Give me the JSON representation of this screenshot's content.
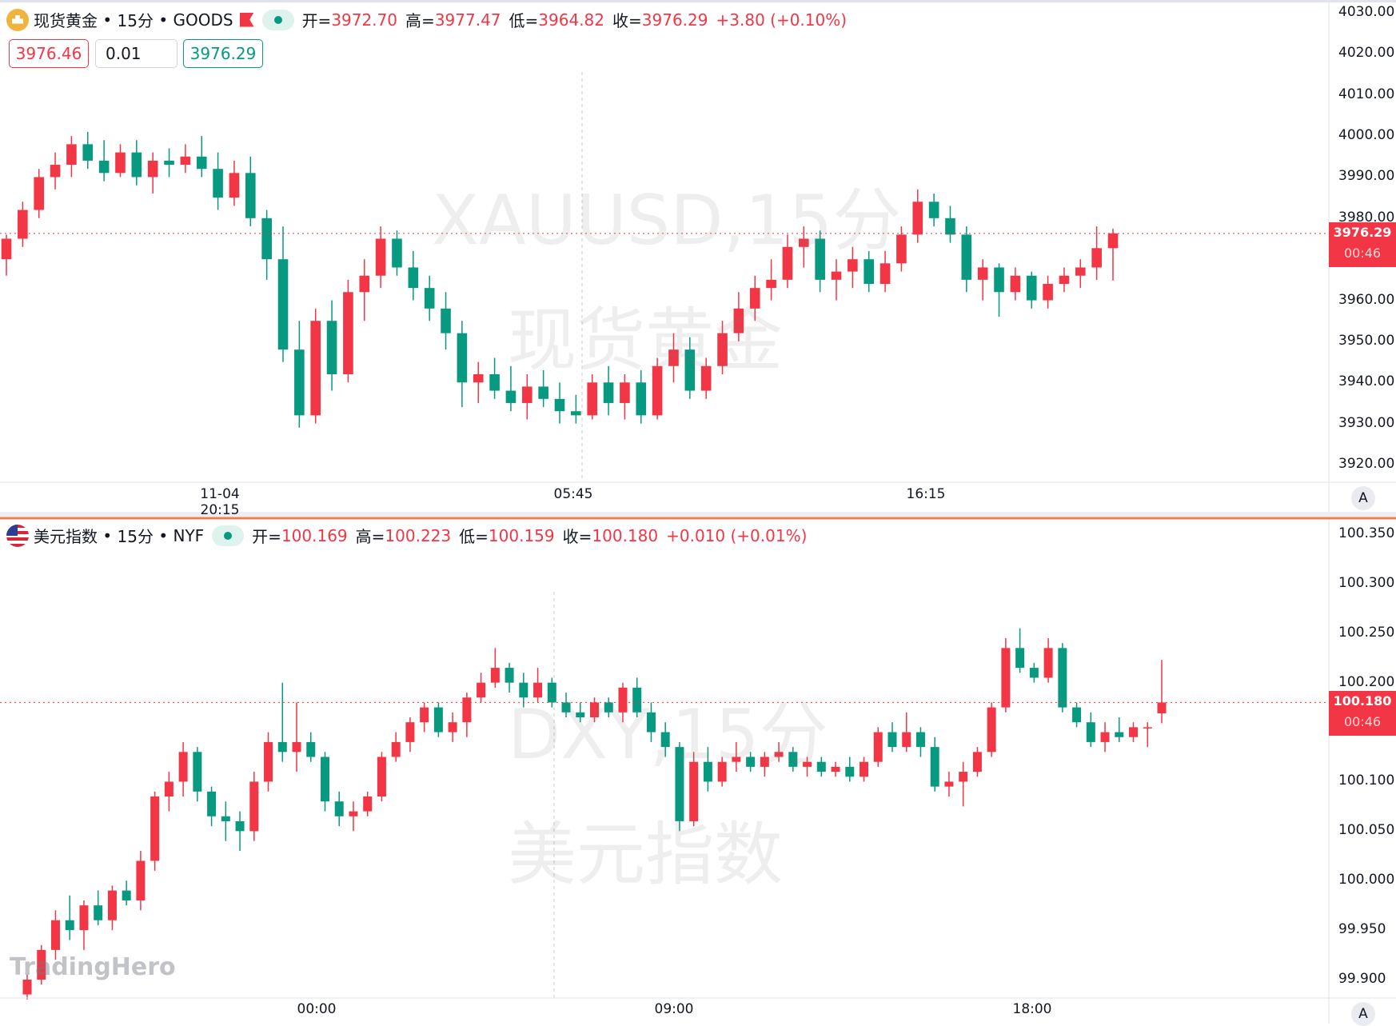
{
  "colors": {
    "up": "#f23645",
    "down": "#089981",
    "separator": "#f07d4f"
  },
  "panes": [
    {
      "legend": {
        "name": "现货黄金",
        "interval": "15分",
        "exchange": "GOODS",
        "open_label": "开=",
        "open": "3972.70",
        "high_label": "高=",
        "high": "3977.47",
        "low_label": "低=",
        "low": "3964.82",
        "close_label": "收=",
        "close": "3976.29",
        "change": "+3.80 (+0.10%)"
      },
      "trade": {
        "sell": "3976.46",
        "qty": "0.01",
        "buy": "3976.29"
      },
      "watermark": [
        "XAUUSD,15分",
        "现货黄金"
      ],
      "current": {
        "price": "3976.29",
        "countdown": "00:46"
      },
      "auto_button": "A"
    },
    {
      "legend": {
        "name": "美元指数",
        "interval": "15分",
        "exchange": "NYF",
        "open_label": "开=",
        "open": "100.169",
        "high_label": "高=",
        "high": "100.223",
        "low_label": "低=",
        "low": "100.159",
        "close_label": "收=",
        "close": "100.180",
        "change": "+0.010 (+0.01%)"
      },
      "watermark": [
        "DXY,15分",
        "美元指数"
      ],
      "current": {
        "price": "100.180",
        "countdown": "00:46"
      },
      "auto_button": "A"
    }
  ],
  "logo": "TradingHero",
  "chart_data": [
    {
      "type": "candlestick",
      "symbol": "XAUUSD",
      "interval": "15分",
      "ylim": [
        3920,
        4030
      ],
      "yticks": [
        "4030.00",
        "4020.00",
        "4010.00",
        "4000.00",
        "3990.00",
        "3980.00",
        "3960.00",
        "3950.00",
        "3940.00",
        "3930.00",
        "3920.00"
      ],
      "ytick_values": [
        4030,
        4020,
        4010,
        4000,
        3990,
        3980,
        3960,
        3950,
        3940,
        3930,
        3920
      ],
      "xticks": [
        "11-04 20:15",
        "05:45",
        "16:15"
      ],
      "ohlc": [
        [
          3970,
          3976,
          3966,
          3975
        ],
        [
          3975,
          3984,
          3973,
          3982
        ],
        [
          3982,
          3992,
          3980,
          3990
        ],
        [
          3990,
          3996,
          3987,
          3993
        ],
        [
          3993,
          4000,
          3990,
          3998
        ],
        [
          3998,
          4001,
          3992,
          3994
        ],
        [
          3994,
          3999,
          3989,
          3991
        ],
        [
          3991,
          3998,
          3990,
          3996
        ],
        [
          3996,
          3999,
          3988,
          3990
        ],
        [
          3990,
          3996,
          3986,
          3994
        ],
        [
          3994,
          3997,
          3990,
          3993
        ],
        [
          3993,
          3998,
          3991,
          3995
        ],
        [
          3995,
          4000,
          3990,
          3992
        ],
        [
          3992,
          3996,
          3982,
          3985
        ],
        [
          3985,
          3994,
          3983,
          3991
        ],
        [
          3991,
          3995,
          3978,
          3980
        ],
        [
          3980,
          3982,
          3965,
          3970
        ],
        [
          3970,
          3978,
          3945,
          3948
        ],
        [
          3948,
          3955,
          3929,
          3932
        ],
        [
          3932,
          3958,
          3930,
          3955
        ],
        [
          3955,
          3960,
          3938,
          3942
        ],
        [
          3942,
          3965,
          3940,
          3962
        ],
        [
          3962,
          3970,
          3955,
          3966
        ],
        [
          3966,
          3978,
          3963,
          3975
        ],
        [
          3975,
          3977,
          3966,
          3968
        ],
        [
          3968,
          3972,
          3960,
          3963
        ],
        [
          3963,
          3966,
          3955,
          3958
        ],
        [
          3958,
          3962,
          3948,
          3952
        ],
        [
          3952,
          3955,
          3934,
          3940
        ],
        [
          3940,
          3945,
          3935,
          3942
        ],
        [
          3942,
          3946,
          3936,
          3938
        ],
        [
          3938,
          3944,
          3933,
          3935
        ],
        [
          3935,
          3942,
          3931,
          3939
        ],
        [
          3939,
          3943,
          3934,
          3936
        ],
        [
          3936,
          3940,
          3930,
          3933
        ],
        [
          3933,
          3937,
          3930,
          3932
        ],
        [
          3932,
          3942,
          3931,
          3940
        ],
        [
          3940,
          3944,
          3932,
          3935
        ],
        [
          3935,
          3942,
          3931,
          3940
        ],
        [
          3940,
          3943,
          3930,
          3932
        ],
        [
          3932,
          3946,
          3931,
          3944
        ],
        [
          3944,
          3952,
          3940,
          3948
        ],
        [
          3948,
          3951,
          3936,
          3938
        ],
        [
          3938,
          3946,
          3936,
          3944
        ],
        [
          3944,
          3955,
          3942,
          3952
        ],
        [
          3952,
          3962,
          3950,
          3958
        ],
        [
          3958,
          3966,
          3955,
          3963
        ],
        [
          3963,
          3970,
          3960,
          3965
        ],
        [
          3965,
          3976,
          3963,
          3973
        ],
        [
          3973,
          3978,
          3968,
          3975
        ],
        [
          3975,
          3977,
          3962,
          3965
        ],
        [
          3965,
          3970,
          3960,
          3967
        ],
        [
          3967,
          3973,
          3963,
          3970
        ],
        [
          3970,
          3972,
          3962,
          3964
        ],
        [
          3964,
          3972,
          3962,
          3969
        ],
        [
          3969,
          3978,
          3967,
          3976
        ],
        [
          3976,
          3987,
          3974,
          3984
        ],
        [
          3984,
          3986,
          3978,
          3980
        ],
        [
          3980,
          3983,
          3974,
          3976
        ],
        [
          3976,
          3978,
          3962,
          3965
        ],
        [
          3965,
          3970,
          3960,
          3968
        ],
        [
          3968,
          3969,
          3956,
          3962
        ],
        [
          3962,
          3968,
          3960,
          3966
        ],
        [
          3966,
          3967,
          3958,
          3960
        ],
        [
          3960,
          3966,
          3958,
          3964
        ],
        [
          3964,
          3968,
          3962,
          3966
        ],
        [
          3966,
          3970,
          3963,
          3968
        ],
        [
          3968,
          3978,
          3965,
          3972.7
        ],
        [
          3972.7,
          3977.47,
          3964.82,
          3976.29
        ]
      ]
    },
    {
      "type": "candlestick",
      "symbol": "DXY",
      "interval": "15分",
      "ylim": [
        99.9,
        100.35
      ],
      "yticks": [
        "100.350",
        "100.300",
        "100.250",
        "100.200",
        "100.100",
        "100.050",
        "100.000",
        "99.950",
        "99.900"
      ],
      "ytick_values": [
        100.35,
        100.3,
        100.25,
        100.2,
        100.1,
        100.05,
        100.0,
        99.95,
        99.9
      ],
      "xticks": [
        "00:00",
        "09:00",
        "18:00"
      ],
      "ohlc": [
        [
          99.885,
          99.905,
          99.88,
          99.9
        ],
        [
          99.9,
          99.935,
          99.895,
          99.93
        ],
        [
          99.93,
          99.97,
          99.92,
          99.96
        ],
        [
          99.96,
          99.985,
          99.94,
          99.95
        ],
        [
          99.95,
          99.98,
          99.93,
          99.975
        ],
        [
          99.975,
          99.99,
          99.955,
          99.96
        ],
        [
          99.96,
          99.995,
          99.95,
          99.99
        ],
        [
          99.99,
          100.0,
          99.975,
          99.98
        ],
        [
          99.98,
          100.03,
          99.97,
          100.02
        ],
        [
          100.02,
          100.09,
          100.01,
          100.085
        ],
        [
          100.085,
          100.11,
          100.07,
          100.1
        ],
        [
          100.1,
          100.14,
          100.085,
          100.13
        ],
        [
          100.13,
          100.135,
          100.08,
          100.09
        ],
        [
          100.09,
          100.095,
          100.055,
          100.065
        ],
        [
          100.065,
          100.08,
          100.04,
          100.06
        ],
        [
          100.06,
          100.07,
          100.03,
          100.05
        ],
        [
          100.05,
          100.11,
          100.04,
          100.1
        ],
        [
          100.1,
          100.15,
          100.09,
          100.14
        ],
        [
          100.14,
          100.2,
          100.12,
          100.13
        ],
        [
          100.13,
          100.18,
          100.11,
          100.14
        ],
        [
          100.14,
          100.15,
          100.12,
          100.125
        ],
        [
          100.125,
          100.13,
          100.07,
          100.08
        ],
        [
          100.08,
          100.09,
          100.055,
          100.065
        ],
        [
          100.065,
          100.08,
          100.05,
          100.07
        ],
        [
          100.07,
          100.09,
          100.065,
          100.085
        ],
        [
          100.085,
          100.13,
          100.08,
          100.125
        ],
        [
          100.125,
          100.15,
          100.12,
          100.14
        ],
        [
          100.14,
          100.165,
          100.13,
          100.16
        ],
        [
          100.16,
          100.18,
          100.15,
          100.175
        ],
        [
          100.175,
          100.18,
          100.145,
          100.15
        ],
        [
          100.15,
          100.17,
          100.14,
          100.16
        ],
        [
          100.16,
          100.19,
          100.145,
          100.185
        ],
        [
          100.185,
          100.21,
          100.18,
          100.2
        ],
        [
          100.2,
          100.235,
          100.195,
          100.215
        ],
        [
          100.215,
          100.22,
          100.19,
          100.2
        ],
        [
          100.2,
          100.21,
          100.175,
          100.185
        ],
        [
          100.185,
          100.215,
          100.18,
          100.2
        ],
        [
          100.2,
          100.205,
          100.175,
          100.18
        ],
        [
          100.18,
          100.19,
          100.165,
          100.17
        ],
        [
          100.17,
          100.18,
          100.16,
          100.165
        ],
        [
          100.165,
          100.185,
          100.16,
          100.18
        ],
        [
          100.18,
          100.185,
          100.165,
          100.17
        ],
        [
          100.17,
          100.2,
          100.16,
          100.195
        ],
        [
          100.195,
          100.205,
          100.165,
          100.17
        ],
        [
          100.17,
          100.18,
          100.14,
          100.15
        ],
        [
          100.15,
          100.16,
          100.125,
          100.135
        ],
        [
          100.135,
          100.14,
          100.05,
          100.06
        ],
        [
          100.06,
          100.13,
          100.055,
          100.12
        ],
        [
          100.12,
          100.135,
          100.09,
          100.1
        ],
        [
          100.1,
          100.125,
          100.095,
          100.12
        ],
        [
          100.12,
          100.14,
          100.11,
          100.125
        ],
        [
          100.125,
          100.13,
          100.11,
          100.115
        ],
        [
          100.115,
          100.13,
          100.105,
          100.125
        ],
        [
          100.125,
          100.14,
          100.12,
          100.13
        ],
        [
          100.13,
          100.135,
          100.11,
          100.115
        ],
        [
          100.115,
          100.125,
          100.105,
          100.12
        ],
        [
          100.12,
          100.125,
          100.105,
          100.11
        ],
        [
          100.11,
          100.12,
          100.105,
          100.115
        ],
        [
          100.115,
          100.125,
          100.1,
          100.105
        ],
        [
          100.105,
          100.125,
          100.1,
          100.12
        ],
        [
          100.12,
          100.155,
          100.115,
          100.15
        ],
        [
          100.15,
          100.16,
          100.13,
          100.135
        ],
        [
          100.135,
          100.17,
          100.13,
          100.15
        ],
        [
          100.15,
          100.155,
          100.125,
          100.135
        ],
        [
          100.135,
          100.145,
          100.09,
          100.095
        ],
        [
          100.095,
          100.11,
          100.085,
          100.1
        ],
        [
          100.1,
          100.12,
          100.075,
          100.11
        ],
        [
          100.11,
          100.135,
          100.105,
          100.13
        ],
        [
          100.13,
          100.18,
          100.125,
          100.175
        ],
        [
          100.175,
          100.245,
          100.17,
          100.235
        ],
        [
          100.235,
          100.255,
          100.21,
          100.215
        ],
        [
          100.215,
          100.22,
          100.2,
          100.205
        ],
        [
          100.205,
          100.245,
          100.2,
          100.235
        ],
        [
          100.235,
          100.24,
          100.17,
          100.175
        ],
        [
          100.175,
          100.18,
          100.155,
          100.16
        ],
        [
          100.16,
          100.17,
          100.135,
          100.14
        ],
        [
          100.14,
          100.16,
          100.13,
          100.15
        ],
        [
          100.15,
          100.165,
          100.14,
          100.145
        ],
        [
          100.145,
          100.16,
          100.14,
          100.155
        ],
        [
          100.155,
          100.16,
          100.135,
          100.155
        ],
        [
          100.169,
          100.223,
          100.159,
          100.18
        ]
      ]
    }
  ]
}
